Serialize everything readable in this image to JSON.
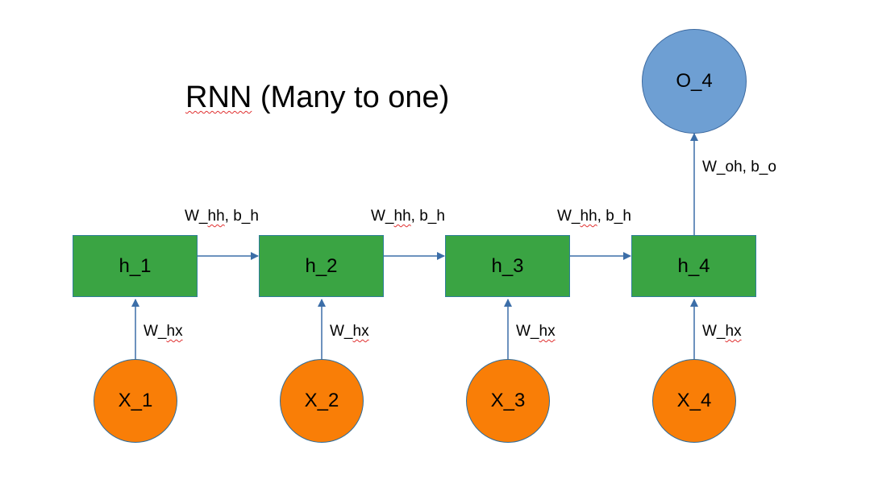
{
  "title": "RNN (Many to one)",
  "title_parts": {
    "squiggled": "RNN",
    "rest": " (Many to one)"
  },
  "colors": {
    "hidden_fill": "#3aa443",
    "input_fill": "#f97e07",
    "output_fill": "#6e9fd3",
    "arrow": "#3c6ea8",
    "spellcheck": "#e03030"
  },
  "hidden_nodes": [
    {
      "label": "h_1"
    },
    {
      "label": "h_2"
    },
    {
      "label": "h_3"
    },
    {
      "label": "h_4"
    }
  ],
  "input_nodes": [
    {
      "label": "X_1"
    },
    {
      "label": "X_2"
    },
    {
      "label": "X_3"
    },
    {
      "label": "X_4"
    }
  ],
  "output_node": {
    "label": "O_4"
  },
  "edges": {
    "input_to_hidden": [
      {
        "w": "W_",
        "w2": "hx"
      },
      {
        "w": "W_",
        "w2": "hx"
      },
      {
        "w": "W_",
        "w2": "hx"
      },
      {
        "w": "W_",
        "w2": "hx"
      }
    ],
    "hidden_to_hidden": [
      {
        "w": "W_",
        "w2": "hh",
        "b": ", b_h"
      },
      {
        "w": "W_",
        "w2": "hh",
        "b": ", b_h"
      },
      {
        "w": "W_",
        "w2": "hh",
        "b": ", b_h"
      }
    ],
    "hidden_to_output": {
      "label": "W_oh, b_o"
    }
  }
}
